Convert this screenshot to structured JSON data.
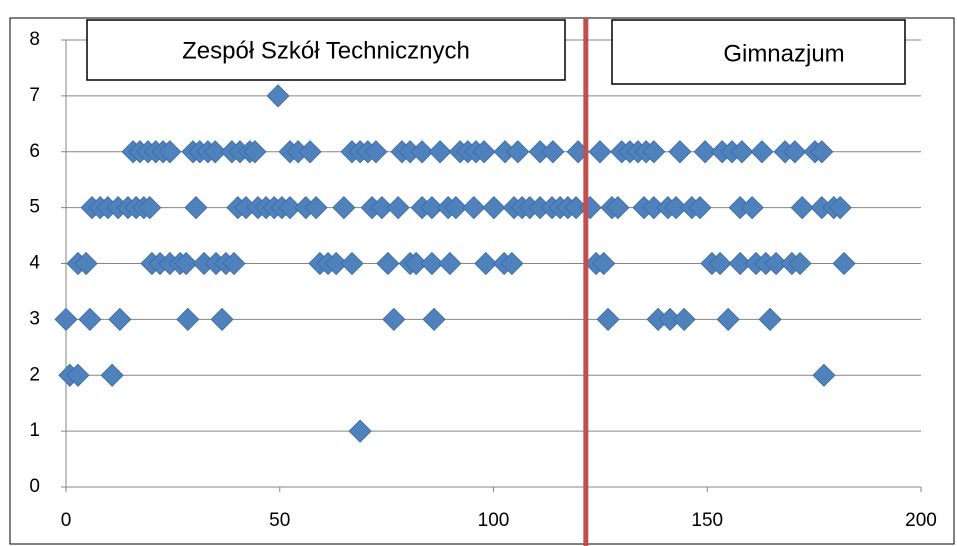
{
  "chart_data": {
    "type": "scatter",
    "color": "#4f81bd",
    "xlim": [
      0,
      200
    ],
    "xticks": [
      0,
      50,
      100,
      150,
      200
    ],
    "ylim": [
      0,
      8
    ],
    "yticks": [
      0,
      1,
      2,
      3,
      4,
      5,
      6,
      7,
      8
    ],
    "grid": true,
    "divider": {
      "x": 121.6,
      "color": "#c0504d"
    },
    "annotations": [
      {
        "text": "Zespół Szkół Technicznych"
      },
      {
        "text": "Gimnazjum"
      }
    ],
    "x": [
      15.7,
      17.3,
      19.2,
      21,
      22.7,
      24.3,
      29.7,
      31.3,
      33.2,
      34.9,
      38.8,
      40.7,
      43,
      44.2,
      52.4,
      54.3,
      57.1,
      66.9,
      68.8,
      70.6,
      72.5,
      78.6,
      80.5,
      83.3,
      87.5,
      92.2,
      94,
      95.9,
      97.8,
      102.7,
      105.7,
      110.9,
      113.9,
      119.8,
      124.9,
      130,
      131.9,
      133.8,
      135.7,
      137.5,
      143.6,
      149.5,
      153.5,
      155.8,
      158.1,
      162.8,
      168.2,
      170.5,
      175.2,
      176.8,
      6.1,
      8,
      9.8,
      12.2,
      14.5,
      16.4,
      18.2,
      19.6,
      30.4,
      40.2,
      42.1,
      44.9,
      46.8,
      48.7,
      50.5,
      52.4,
      56.1,
      58.5,
      65,
      71.6,
      73.9,
      77.7,
      83.3,
      85.6,
      89.4,
      91.2,
      95.4,
      100.1,
      104.8,
      106.7,
      108.5,
      110.9,
      113.7,
      115.6,
      117.4,
      119.3,
      122.6,
      127.7,
      129.1,
      135.2,
      137.5,
      140.8,
      142.7,
      146.4,
      148.3,
      157.7,
      160.5,
      172.2,
      176.8,
      179.6,
      181.1,
      2.8,
      4.7,
      20.1,
      22,
      24.3,
      26.7,
      28.1,
      32.3,
      35.1,
      37.4,
      39.3,
      59.4,
      61.3,
      63.2,
      66.9,
      75.3,
      80.5,
      81.9,
      85.6,
      89.8,
      98.2,
      102.5,
      104.3,
      124,
      125.8,
      151.1,
      153,
      157.7,
      161.4,
      163.7,
      166.1,
      169.8,
      171.7,
      182,
      0,
      5.6,
      12.6,
      28.5,
      36.5,
      76.7,
      86.1,
      126.8,
      138.5,
      141.3,
      144.6,
      154.9,
      164.7,
      0.9,
      2.8,
      10.8,
      177.3,
      68.8,
      49.6
    ],
    "values": [
      6,
      6,
      6,
      6,
      6,
      6,
      6,
      6,
      6,
      6,
      6,
      6,
      6,
      6,
      6,
      6,
      6,
      6,
      6,
      6,
      6,
      6,
      6,
      6,
      6,
      6,
      6,
      6,
      6,
      6,
      6,
      6,
      6,
      6,
      6,
      6,
      6,
      6,
      6,
      6,
      6,
      6,
      6,
      6,
      6,
      6,
      6,
      6,
      6,
      6,
      5,
      5,
      5,
      5,
      5,
      5,
      5,
      5,
      5,
      5,
      5,
      5,
      5,
      5,
      5,
      5,
      5,
      5,
      5,
      5,
      5,
      5,
      5,
      5,
      5,
      5,
      5,
      5,
      5,
      5,
      5,
      5,
      5,
      5,
      5,
      5,
      5,
      5,
      5,
      5,
      5,
      5,
      5,
      5,
      5,
      5,
      5,
      5,
      5,
      5,
      5,
      4,
      4,
      4,
      4,
      4,
      4,
      4,
      4,
      4,
      4,
      4,
      4,
      4,
      4,
      4,
      4,
      4,
      4,
      4,
      4,
      4,
      4,
      4,
      4,
      4,
      4,
      4,
      4,
      4,
      4,
      4,
      4,
      4,
      4,
      3,
      3,
      3,
      3,
      3,
      3,
      3,
      3,
      3,
      3,
      3,
      3,
      3,
      2,
      2,
      2,
      2,
      1,
      7
    ]
  }
}
